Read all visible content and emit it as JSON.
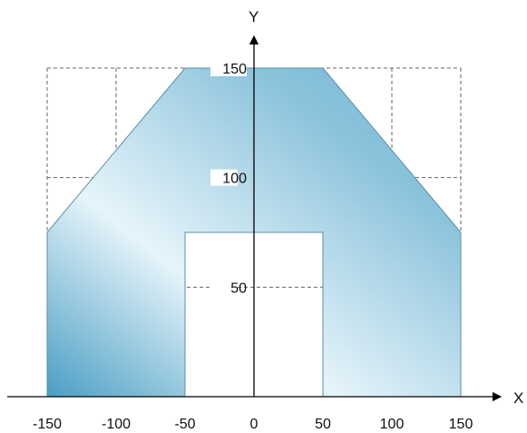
{
  "chart_data": {
    "type": "area",
    "title": "",
    "xlabel": "X",
    "ylabel": "Y",
    "xlim": [
      -150,
      150
    ],
    "ylim": [
      0,
      150
    ],
    "x_ticks": [
      -150,
      -100,
      -50,
      0,
      50,
      100,
      150
    ],
    "y_ticks": [
      50,
      100,
      150
    ],
    "x_tick_labels": [
      "-150",
      "-100",
      "-50",
      "0",
      "50",
      "100",
      "150"
    ],
    "y_tick_labels": [
      "50",
      "100",
      "150"
    ],
    "grid": true,
    "grid_style": "dashed",
    "region": {
      "outline": [
        [
          -150,
          0
        ],
        [
          -150,
          75
        ],
        [
          -50,
          150
        ],
        [
          50,
          150
        ],
        [
          150,
          75
        ],
        [
          150,
          0
        ],
        [
          50,
          0
        ],
        [
          50,
          75
        ],
        [
          -50,
          75
        ],
        [
          -50,
          0
        ]
      ],
      "fill_gradient": [
        "#4a9ec4",
        "#e6f4fa",
        "#6fb3d1"
      ]
    }
  }
}
